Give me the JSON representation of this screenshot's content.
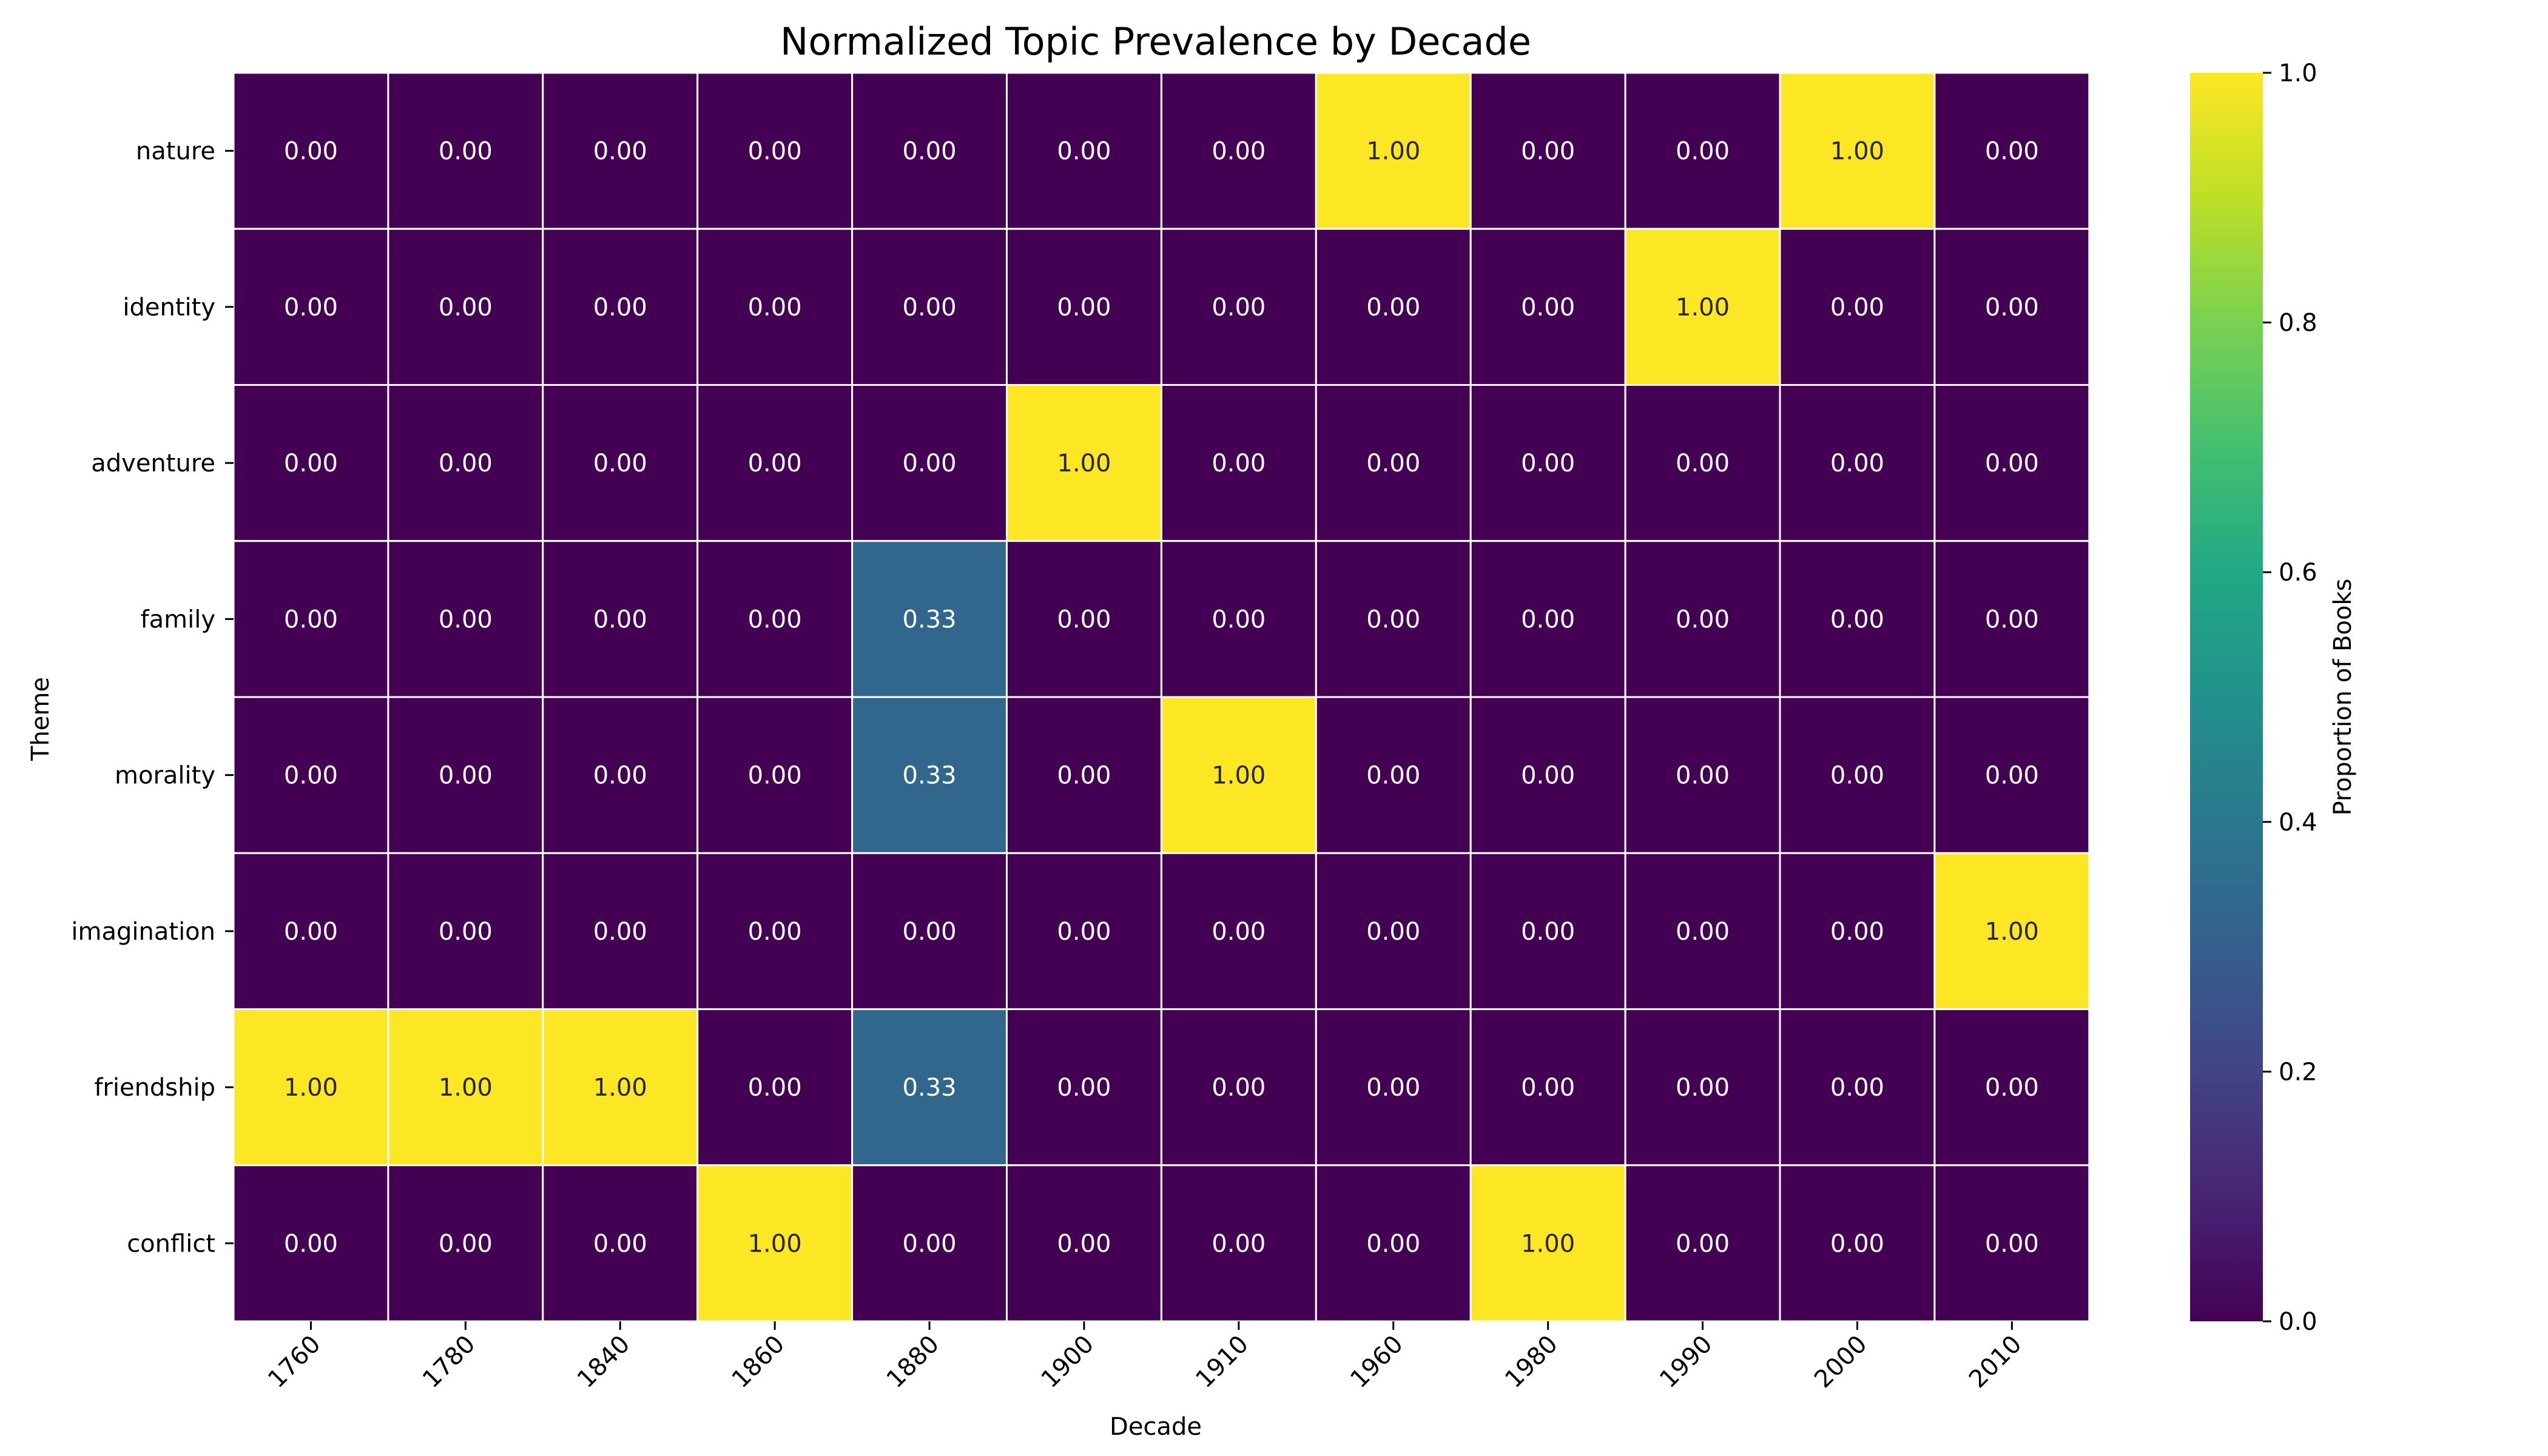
{
  "chart_data": {
    "type": "heatmap",
    "title": "Normalized Topic Prevalence by Decade",
    "xlabel": "Decade",
    "ylabel": "Theme",
    "x_categories": [
      "1760",
      "1780",
      "1840",
      "1860",
      "1880",
      "1900",
      "1910",
      "1960",
      "1980",
      "1990",
      "2000",
      "2010"
    ],
    "y_categories": [
      "nature",
      "identity",
      "adventure",
      "family",
      "morality",
      "imagination",
      "friendship",
      "conflict"
    ],
    "values": [
      [
        0,
        0,
        0,
        0,
        0,
        0,
        0,
        1,
        0,
        0,
        1,
        0
      ],
      [
        0,
        0,
        0,
        0,
        0,
        0,
        0,
        0,
        0,
        1,
        0,
        0
      ],
      [
        0,
        0,
        0,
        0,
        0,
        1,
        0,
        0,
        0,
        0,
        0,
        0
      ],
      [
        0,
        0,
        0,
        0,
        0.33,
        0,
        0,
        0,
        0,
        0,
        0,
        0
      ],
      [
        0,
        0,
        0,
        0,
        0.33,
        0,
        1,
        0,
        0,
        0,
        0,
        0
      ],
      [
        0,
        0,
        0,
        0,
        0,
        0,
        0,
        0,
        0,
        0,
        0,
        1
      ],
      [
        1,
        1,
        1,
        0,
        0.33,
        0,
        0,
        0,
        0,
        0,
        0,
        0
      ],
      [
        0,
        0,
        0,
        1,
        0,
        0,
        0,
        0,
        1,
        0,
        0,
        0
      ]
    ],
    "value_format_decimals": 2,
    "colormap": "viridis",
    "vmin": 0,
    "vmax": 1,
    "colorbar": {
      "label": "Proportion of Books",
      "ticks": [
        "0.0",
        "0.2",
        "0.4",
        "0.6",
        "0.8",
        "1.0"
      ],
      "placement": "right"
    },
    "x_tick_rotation_deg": 45,
    "grid_line_color": "#ffffff"
  }
}
